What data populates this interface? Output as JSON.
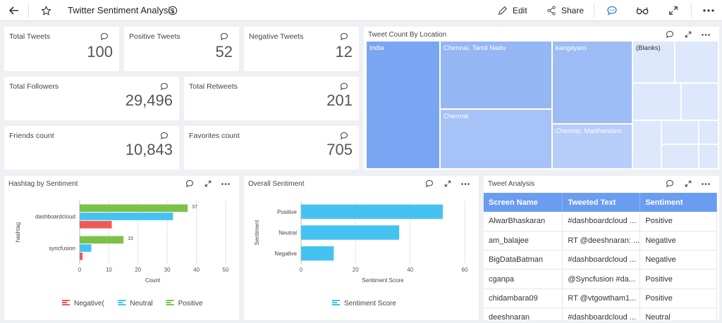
{
  "header": {
    "title": "Twitter Sentiment Analysis",
    "edit_label": "Edit",
    "share_label": "Share"
  },
  "kpis": [
    {
      "label": "Total Tweets",
      "value": "100"
    },
    {
      "label": "Positive Tweets",
      "value": "52"
    },
    {
      "label": "Negative Tweets",
      "value": "12"
    },
    {
      "label": "Total Followers",
      "value": "29,496"
    },
    {
      "label": "Total Retweets",
      "value": "201"
    },
    {
      "label": "Friends count",
      "value": "10,843"
    },
    {
      "label": "Favorites count",
      "value": "705"
    }
  ],
  "treemap": {
    "title": "Tweet Count By Location",
    "cells": [
      {
        "label": "India"
      },
      {
        "label": "Chennai, Tamil Nadu"
      },
      {
        "label": "Chennai"
      },
      {
        "label": "kangayam"
      },
      {
        "label": "Chennai, Marthandam"
      },
      {
        "label": "(Blanks)"
      }
    ],
    "colors": [
      "#7aa5f2",
      "#94b7f4",
      "#a6c2f6",
      "#9dbcf5",
      "#b5cdf8",
      "#dde8fc"
    ]
  },
  "hashtag_panel": {
    "title": "Hashtag by Sentiment"
  },
  "overall_panel": {
    "title": "Overall Sentiment"
  },
  "tweet_panel": {
    "title": "Tweet Analysis",
    "columns": [
      "Screen Name",
      "Tweeted Text",
      "Sentiment"
    ],
    "rows": [
      [
        "AlwarBhaskaran",
        "#dashboardcloud ...",
        "Positive"
      ],
      [
        "am_balajee",
        "RT @deeshnaran: ...",
        "Negative"
      ],
      [
        "BigDataBatman",
        "#dashboardcloud ...",
        "Negative"
      ],
      [
        "cganpa",
        "@Syncfusion #da...",
        "Positive"
      ],
      [
        "chidambara09",
        "RT @vtgowtham1...",
        "Positive"
      ],
      [
        "deeshnaran",
        "#dashboardcloud ...",
        "Neutral"
      ]
    ]
  },
  "chart_data": [
    {
      "type": "bar",
      "orientation": "horizontal",
      "title": "Hashtag by Sentiment",
      "xlabel": "Count",
      "ylabel": "hashtag",
      "categories": [
        "dashboardcloud",
        "syncfusion"
      ],
      "xlim": [
        0,
        50
      ],
      "xticks": [
        "0",
        "10",
        "20",
        "30",
        "40",
        "50"
      ],
      "series": [
        {
          "name": "Negative(",
          "color": "#ec5a5a",
          "values": [
            11,
            1
          ]
        },
        {
          "name": "Neutral",
          "color": "#45c3f0",
          "values": [
            32,
            4
          ]
        },
        {
          "name": "Positive",
          "color": "#7cc24a",
          "values": [
            37,
            15
          ]
        }
      ],
      "data_labels": [
        {
          "category": "dashboardcloud",
          "series": "Positive",
          "text": "37"
        },
        {
          "category": "syncfusion",
          "series": "Positive",
          "text": "15"
        }
      ],
      "legend": "bottom",
      "grid": true
    },
    {
      "type": "bar",
      "orientation": "horizontal",
      "title": "Overall Sentiment",
      "xlabel": "Sentiment Score",
      "ylabel": "Sentiment",
      "categories": [
        "Positive",
        "Neutral",
        "Negative"
      ],
      "xlim": [
        0,
        60
      ],
      "xticks": [
        "0",
        "20",
        "40",
        "60"
      ],
      "series": [
        {
          "name": "Sentiment Score",
          "color": "#45c3f0",
          "values": [
            52,
            36,
            12
          ]
        }
      ],
      "legend": "bottom",
      "grid": true
    }
  ]
}
